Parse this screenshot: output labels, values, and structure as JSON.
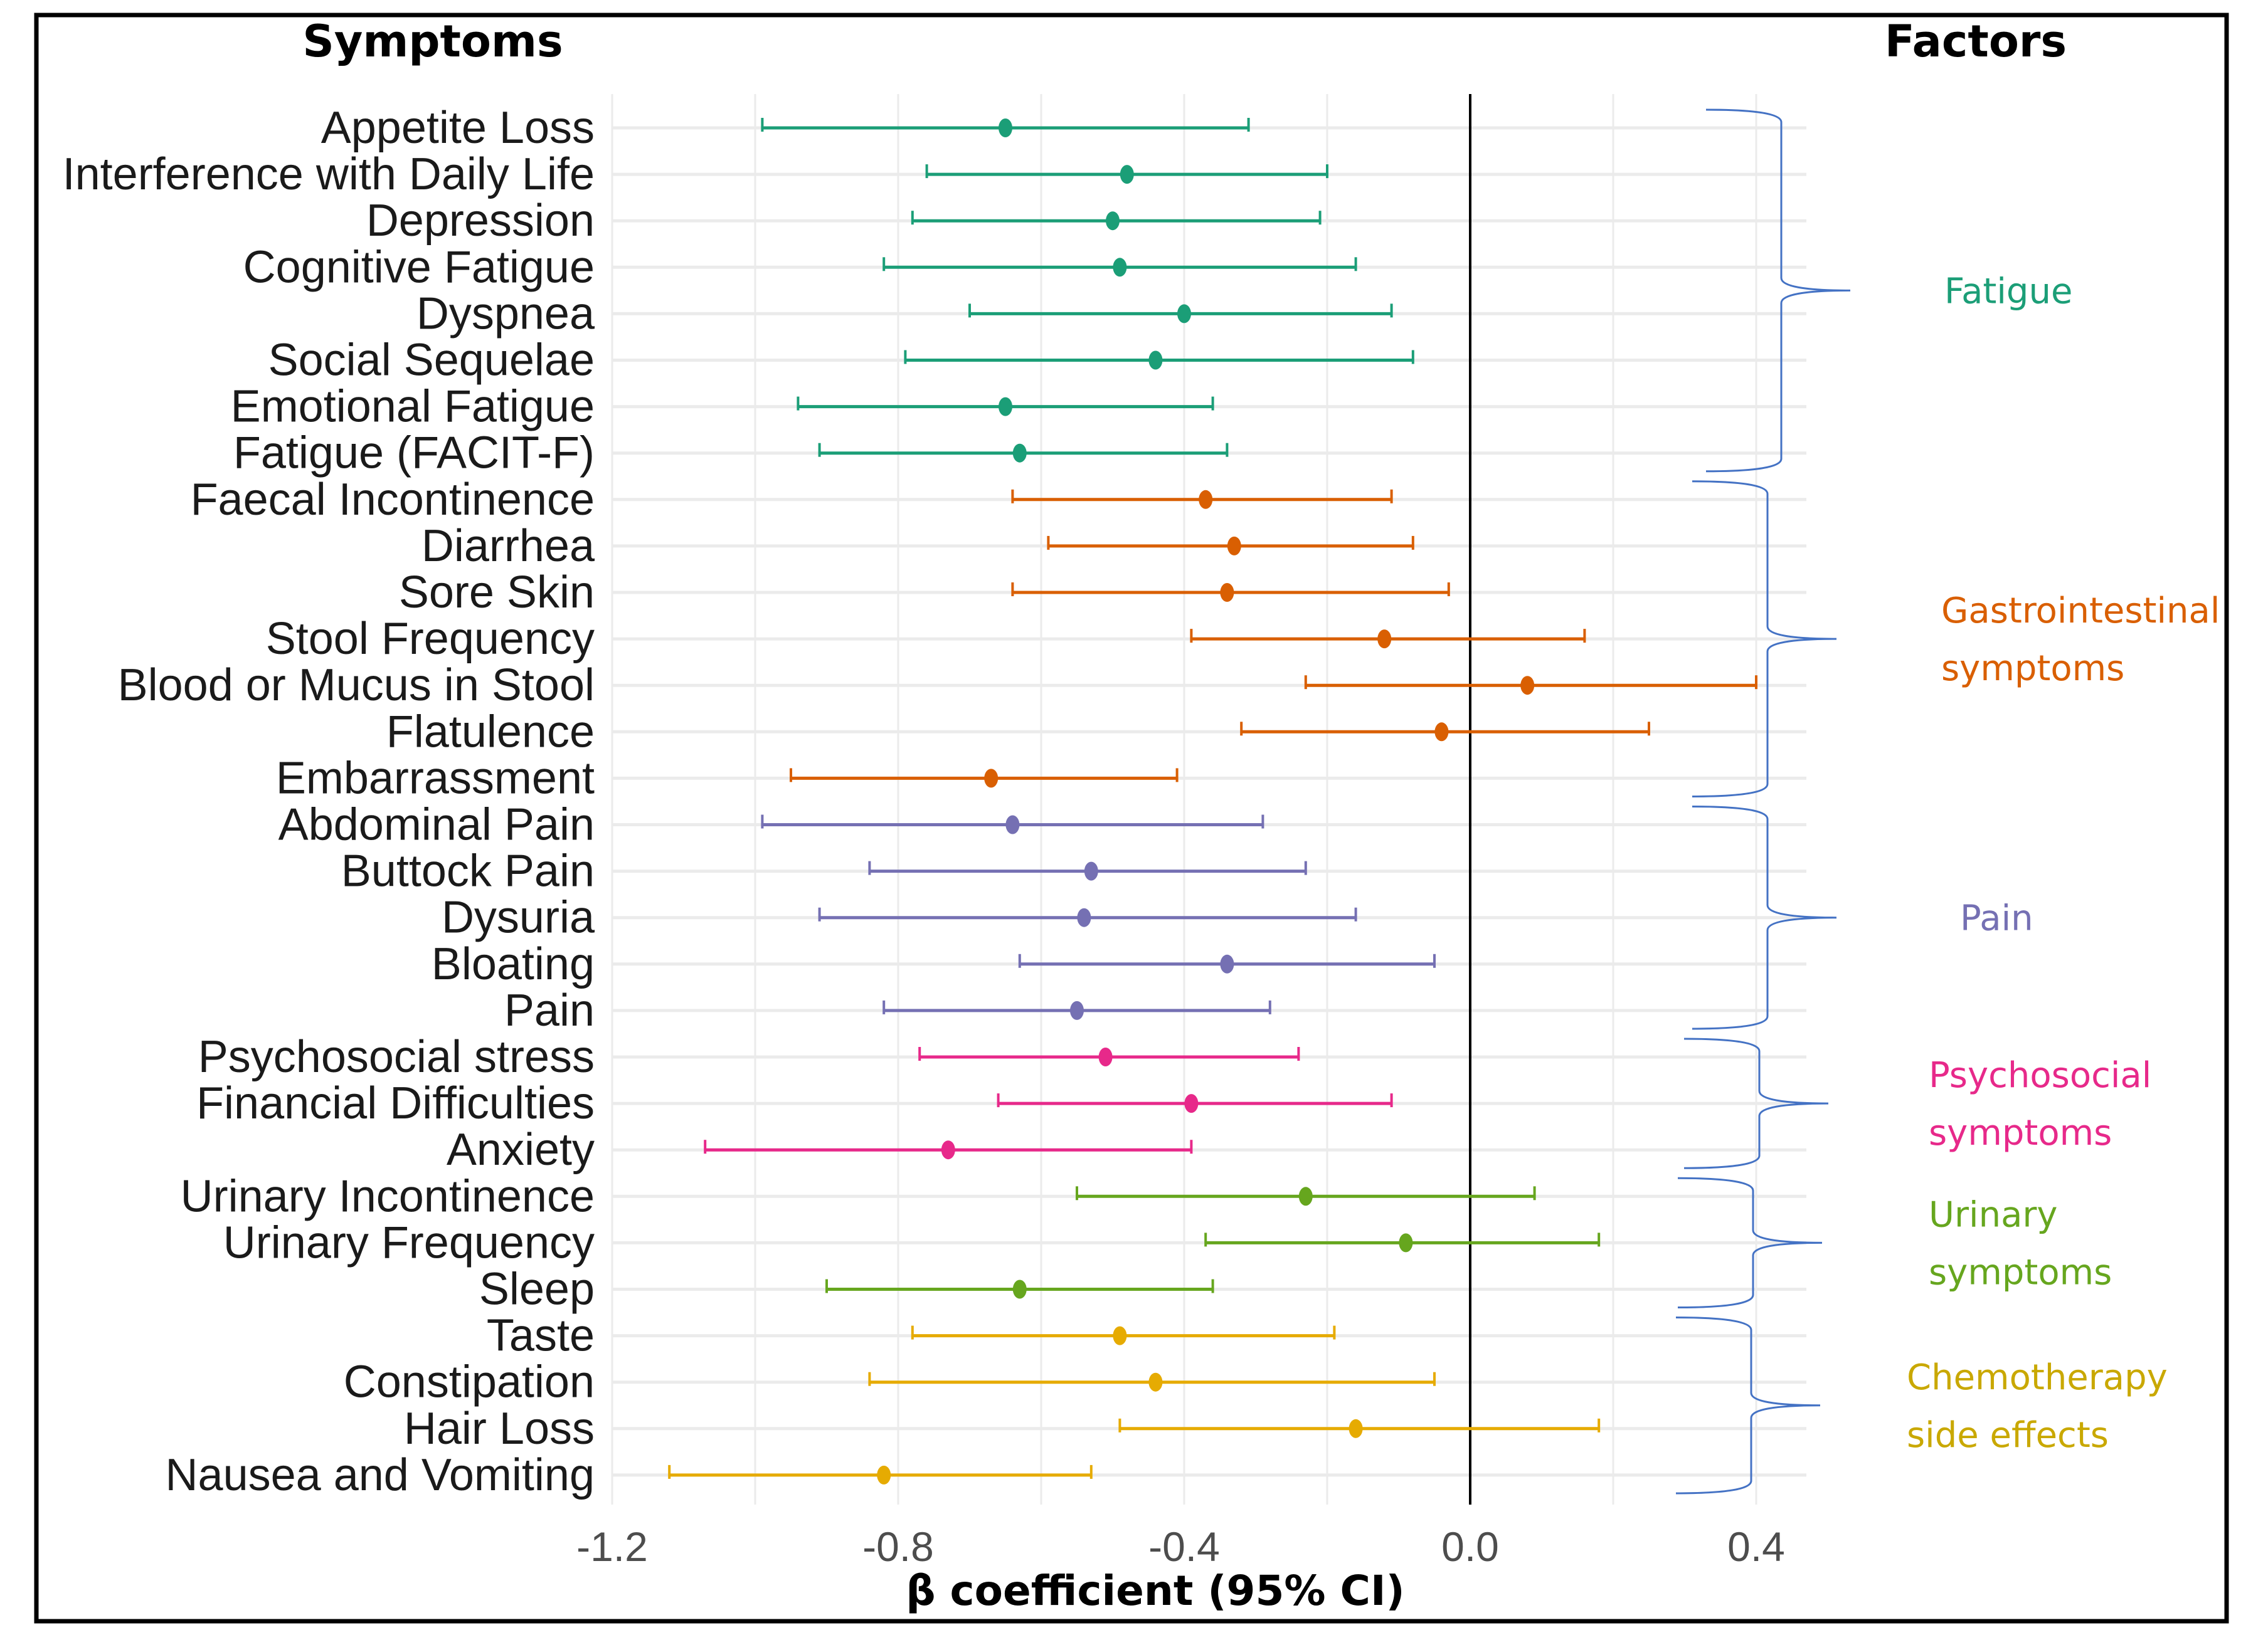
{
  "headers": {
    "left": "Symptoms",
    "right": "Factors"
  },
  "chart_data": {
    "type": "forest",
    "title": "",
    "xlabel": "β coefficient (95% CI)",
    "ylabel": "",
    "xlim": [
      -1.2,
      0.45
    ],
    "x_ticks": [
      -1.2,
      -0.8,
      -0.4,
      0.0,
      0.4
    ],
    "x_tick_labels": [
      "-1.2",
      "-0.8",
      "-0.4",
      "0.0",
      "0.4"
    ],
    "reference_line": 0.0,
    "grid": true,
    "groups": [
      {
        "name": "Fatigue",
        "label_lines": [
          "Fatigue"
        ],
        "color": "#1b9e77",
        "items": [
          {
            "label": "Appetite Loss",
            "estimate": -0.65,
            "lower": -0.99,
            "upper": -0.31
          },
          {
            "label": "Interference with Daily Life",
            "estimate": -0.48,
            "lower": -0.76,
            "upper": -0.2
          },
          {
            "label": "Depression",
            "estimate": -0.5,
            "lower": -0.78,
            "upper": -0.21
          },
          {
            "label": "Cognitive Fatigue",
            "estimate": -0.49,
            "lower": -0.82,
            "upper": -0.16
          },
          {
            "label": "Dyspnea",
            "estimate": -0.4,
            "lower": -0.7,
            "upper": -0.11
          },
          {
            "label": "Social Sequelae",
            "estimate": -0.44,
            "lower": -0.79,
            "upper": -0.08
          },
          {
            "label": "Emotional Fatigue",
            "estimate": -0.65,
            "lower": -0.94,
            "upper": -0.36
          },
          {
            "label": "Fatigue (FACIT-F)",
            "estimate": -0.63,
            "lower": -0.91,
            "upper": -0.34
          }
        ]
      },
      {
        "name": "Gastrointestinal symptoms",
        "label_lines": [
          "Gastrointestinal",
          "symptoms"
        ],
        "color": "#d95f02",
        "items": [
          {
            "label": "Faecal Incontinence",
            "estimate": -0.37,
            "lower": -0.64,
            "upper": -0.11
          },
          {
            "label": "Diarrhea",
            "estimate": -0.33,
            "lower": -0.59,
            "upper": -0.08
          },
          {
            "label": "Sore Skin",
            "estimate": -0.34,
            "lower": -0.64,
            "upper": -0.03
          },
          {
            "label": "Stool Frequency",
            "estimate": -0.12,
            "lower": -0.39,
            "upper": 0.16
          },
          {
            "label": "Blood or Mucus in Stool",
            "estimate": 0.08,
            "lower": -0.23,
            "upper": 0.4
          },
          {
            "label": "Flatulence",
            "estimate": -0.04,
            "lower": -0.32,
            "upper": 0.25
          },
          {
            "label": "Embarrassment",
            "estimate": -0.67,
            "lower": -0.95,
            "upper": -0.41
          }
        ]
      },
      {
        "name": "Pain",
        "label_lines": [
          "Pain"
        ],
        "color": "#7570b3",
        "items": [
          {
            "label": "Abdominal Pain",
            "estimate": -0.64,
            "lower": -0.99,
            "upper": -0.29
          },
          {
            "label": "Buttock Pain",
            "estimate": -0.53,
            "lower": -0.84,
            "upper": -0.23
          },
          {
            "label": "Dysuria",
            "estimate": -0.54,
            "lower": -0.91,
            "upper": -0.16
          },
          {
            "label": "Bloating",
            "estimate": -0.34,
            "lower": -0.63,
            "upper": -0.05
          },
          {
            "label": "Pain",
            "estimate": -0.55,
            "lower": -0.82,
            "upper": -0.28
          }
        ]
      },
      {
        "name": "Psychosocial symptoms",
        "label_lines": [
          "Psychosocial",
          "symptoms"
        ],
        "color": "#e7298a",
        "items": [
          {
            "label": "Psychosocial stress",
            "estimate": -0.51,
            "lower": -0.77,
            "upper": -0.24
          },
          {
            "label": "Financial Difficulties",
            "estimate": -0.39,
            "lower": -0.66,
            "upper": -0.11
          },
          {
            "label": "Anxiety",
            "estimate": -0.73,
            "lower": -1.07,
            "upper": -0.39
          }
        ]
      },
      {
        "name": "Urinary symptoms",
        "label_lines": [
          "Urinary",
          "symptoms"
        ],
        "color": "#66a61e",
        "items": [
          {
            "label": "Urinary Incontinence",
            "estimate": -0.23,
            "lower": -0.55,
            "upper": 0.09
          },
          {
            "label": "Urinary Frequency",
            "estimate": -0.09,
            "lower": -0.37,
            "upper": 0.18
          },
          {
            "label": "Sleep",
            "estimate": -0.63,
            "lower": -0.9,
            "upper": -0.36
          }
        ]
      },
      {
        "name": "Chemotherapy side effects",
        "label_lines": [
          "Chemotherapy",
          "side effects"
        ],
        "color": "#e6ab02",
        "items": [
          {
            "label": "Taste",
            "estimate": -0.49,
            "lower": -0.78,
            "upper": -0.19
          },
          {
            "label": "Constipation",
            "estimate": -0.44,
            "lower": -0.84,
            "upper": -0.05
          },
          {
            "label": "Hair Loss",
            "estimate": -0.16,
            "lower": -0.49,
            "upper": 0.18
          },
          {
            "label": "Nausea and Vomiting",
            "estimate": -0.82,
            "lower": -1.12,
            "upper": -0.53
          }
        ]
      }
    ],
    "factor_label_colors": {
      "Fatigue": "#1b9e77",
      "Gastrointestinal symptoms": "#d95f02",
      "Pain": "#7570b3",
      "Psychosocial symptoms": "#e7298a",
      "Urinary symptoms": "#66a61e",
      "Chemotherapy side effects": "#c9a800"
    },
    "brace_color": "#4472c4"
  }
}
